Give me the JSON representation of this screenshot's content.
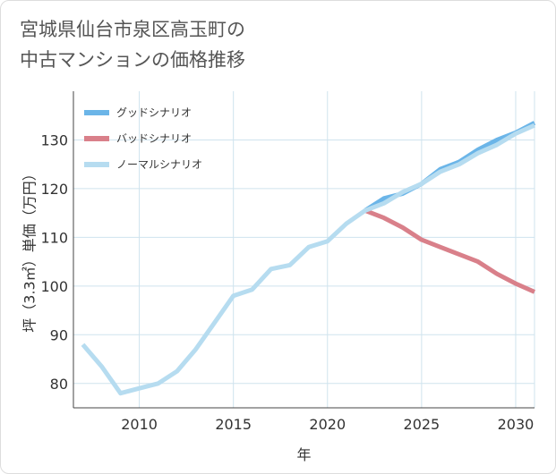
{
  "title": {
    "line1": "宮城県仙台市泉区高玉町の",
    "line2": "中古マンションの価格推移"
  },
  "colors": {
    "good": "#6bb5e8",
    "bad": "#d9808a",
    "normal": "#b6dcf0",
    "grid": "#cfe3ee",
    "axis": "#444444"
  },
  "chart_data": {
    "type": "line",
    "title": "宮城県仙台市泉区高玉町の中古マンションの価格推移",
    "xlabel": "年",
    "ylabel": "坪（3.3㎡）単価（万円）",
    "xlim": [
      2006.5,
      2031
    ],
    "ylim": [
      75,
      140
    ],
    "xticks": [
      2010,
      2015,
      2020,
      2025,
      2030
    ],
    "yticks": [
      80,
      90,
      100,
      110,
      120,
      130
    ],
    "grid": true,
    "legend_position": "top-left",
    "series": [
      {
        "key": "good",
        "name": "グッドシナリオ",
        "x": [
          2022,
          2023,
          2024,
          2025,
          2026,
          2027,
          2028,
          2029,
          2030,
          2031
        ],
        "y": [
          115.5,
          118,
          119,
          121,
          124,
          125.5,
          128,
          130,
          131.5,
          133.5
        ]
      },
      {
        "key": "bad",
        "name": "バッドシナリオ",
        "x": [
          2022,
          2023,
          2024,
          2025,
          2026,
          2027,
          2028,
          2029,
          2030,
          2031
        ],
        "y": [
          115.5,
          114,
          112,
          109.5,
          108,
          106.5,
          105,
          102.5,
          100.5,
          98.8
        ]
      },
      {
        "key": "normal",
        "name": "ノーマルシナリオ",
        "x": [
          2007,
          2008,
          2009,
          2010,
          2011,
          2012,
          2013,
          2014,
          2015,
          2016,
          2017,
          2018,
          2019,
          2020,
          2021,
          2022,
          2023,
          2024,
          2025,
          2026,
          2027,
          2028,
          2029,
          2030,
          2031
        ],
        "y": [
          88,
          83.5,
          78,
          79,
          80,
          82.5,
          87,
          92.5,
          98,
          99.3,
          103.5,
          104.3,
          108,
          109.2,
          112.8,
          115.5,
          117,
          119.3,
          121,
          123.5,
          125,
          127.3,
          129,
          131.3,
          133
        ]
      }
    ]
  }
}
